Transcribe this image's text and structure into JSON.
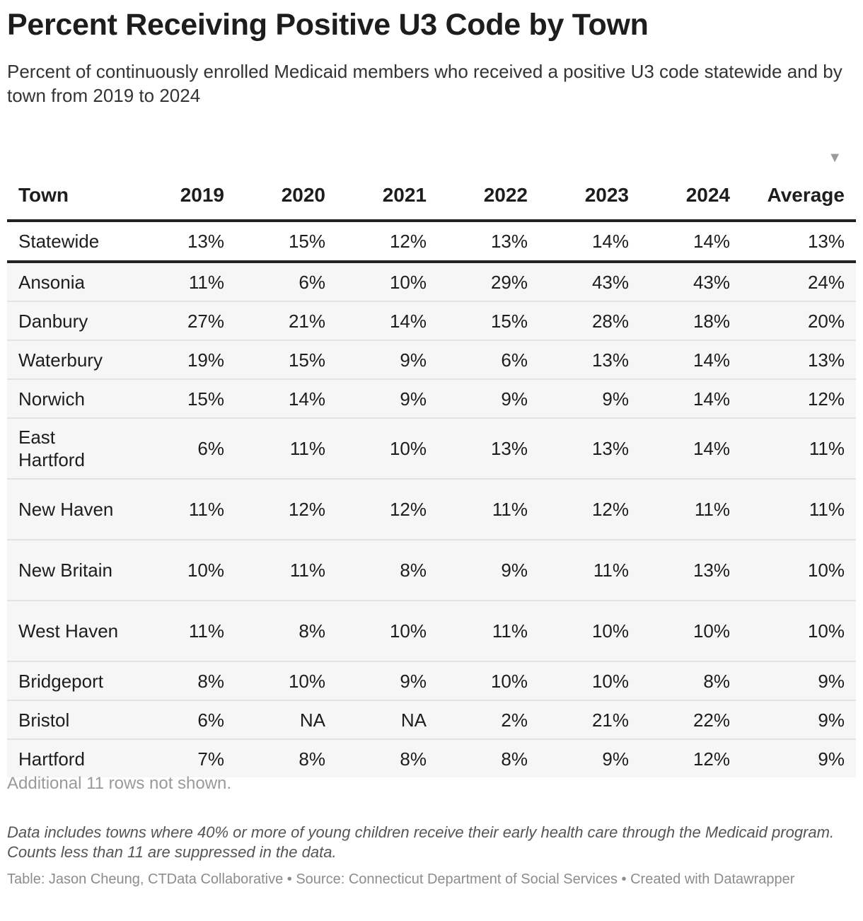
{
  "title": "Percent Receiving Positive U3 Code by Town",
  "subtitle": "Percent of continuously enrolled Medicaid members who received a positive U3 code statewide and by town from 2019 to 2024",
  "sort_indicator": "▼",
  "chart_data": {
    "type": "table",
    "columns": [
      "Town",
      "2019",
      "2020",
      "2021",
      "2022",
      "2023",
      "2024",
      "Average"
    ],
    "statewide": {
      "town": "Statewide",
      "values": [
        "13%",
        "15%",
        "12%",
        "13%",
        "14%",
        "14%",
        "13%"
      ]
    },
    "rows": [
      {
        "town": "Ansonia",
        "values": [
          "11%",
          "6%",
          "10%",
          "29%",
          "43%",
          "43%",
          "24%"
        ]
      },
      {
        "town": "Danbury",
        "values": [
          "27%",
          "21%",
          "14%",
          "15%",
          "28%",
          "18%",
          "20%"
        ]
      },
      {
        "town": "Waterbury",
        "values": [
          "19%",
          "15%",
          "9%",
          "6%",
          "13%",
          "14%",
          "13%"
        ]
      },
      {
        "town": "Norwich",
        "values": [
          "15%",
          "14%",
          "9%",
          "9%",
          "9%",
          "14%",
          "12%"
        ]
      },
      {
        "town": "East Hartford",
        "values": [
          "6%",
          "11%",
          "10%",
          "13%",
          "13%",
          "14%",
          "11%"
        ]
      },
      {
        "town": "New Haven",
        "values": [
          "11%",
          "12%",
          "12%",
          "11%",
          "12%",
          "11%",
          "11%"
        ]
      },
      {
        "town": "New Britain",
        "values": [
          "10%",
          "11%",
          "8%",
          "9%",
          "11%",
          "13%",
          "10%"
        ]
      },
      {
        "town": "West Haven",
        "values": [
          "11%",
          "8%",
          "10%",
          "11%",
          "10%",
          "10%",
          "10%"
        ]
      },
      {
        "town": "Bridgeport",
        "values": [
          "8%",
          "10%",
          "9%",
          "10%",
          "10%",
          "8%",
          "9%"
        ]
      },
      {
        "town": "Bristol",
        "values": [
          "6%",
          "NA",
          "NA",
          "2%",
          "21%",
          "22%",
          "9%"
        ]
      },
      {
        "town": "Hartford",
        "values": [
          "7%",
          "8%",
          "8%",
          "8%",
          "9%",
          "12%",
          "9%"
        ]
      }
    ]
  },
  "rows_note": "Additional 11 rows not shown.",
  "notes": "Data includes towns where 40% or more of young children receive their early health care through the Medicaid program. Counts less than 11 are suppressed in the data.",
  "byline": "Table: Jason Cheung, CTData Collaborative • Source: Connecticut Department of Social Services • Created with Datawrapper"
}
